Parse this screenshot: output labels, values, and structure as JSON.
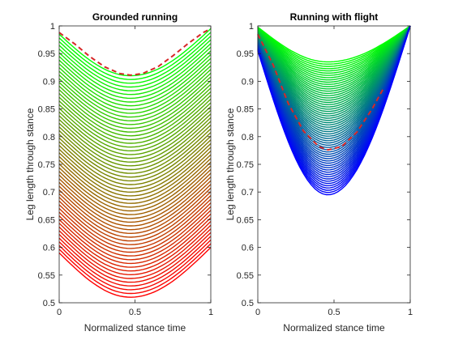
{
  "figure": {
    "background": "#ffffff"
  },
  "chart_data": [
    {
      "type": "line",
      "title": "Grounded running",
      "xlabel": "Normalized stance time",
      "ylabel": "Leg length through stance",
      "xlim": [
        0,
        1
      ],
      "ylim": [
        0.5,
        1.0
      ],
      "xticks": [
        0,
        0.5,
        1
      ],
      "yticks": [
        0.5,
        0.55,
        0.6,
        0.65,
        0.7,
        0.75,
        0.8,
        0.85,
        0.9,
        0.95,
        1
      ],
      "xtick_labels": [
        "0",
        "0.5",
        "1"
      ],
      "ytick_labels": [
        "0.5",
        "0.55",
        "0.6",
        "0.65",
        "0.7",
        "0.75",
        "0.8",
        "0.85",
        "0.9",
        "0.95",
        "1"
      ],
      "grid": false,
      "colors": {
        "family_start": "#00ff00",
        "family_end": "#ff0000",
        "highlight": "#d62728"
      },
      "curve_family": {
        "count": 60,
        "x_end": 1.0,
        "start_y_range": [
          0.985,
          0.59
        ],
        "min_y_range": [
          0.91,
          0.51
        ],
        "min_x": 0.47,
        "end_y_range": [
          0.995,
          0.6
        ],
        "color_from": "#00ff00",
        "color_to": "#ff0000"
      },
      "highlight_curve": {
        "style": "dashed",
        "color": "#d62728",
        "x": [
          0,
          0.1,
          0.2,
          0.3,
          0.4,
          0.47,
          0.55,
          0.65,
          0.75,
          0.85,
          0.95,
          1.0
        ],
        "y": [
          0.988,
          0.968,
          0.945,
          0.926,
          0.914,
          0.911,
          0.914,
          0.926,
          0.946,
          0.968,
          0.988,
          0.995
        ]
      }
    },
    {
      "type": "line",
      "title": "Running with flight",
      "xlabel": "Normalized stance time",
      "ylabel": "Leg length through stance",
      "xlim": [
        0,
        1
      ],
      "ylim": [
        0.5,
        1.0
      ],
      "xticks": [
        0,
        0.5,
        1
      ],
      "yticks": [
        0.5,
        0.55,
        0.6,
        0.65,
        0.7,
        0.75,
        0.8,
        0.85,
        0.9,
        0.95,
        1
      ],
      "xtick_labels": [
        "0",
        "0.5",
        "1"
      ],
      "ytick_labels": [
        "0.5",
        "0.55",
        "0.6",
        "0.65",
        "0.7",
        "0.75",
        "0.8",
        "0.85",
        "0.9",
        "0.95",
        "1"
      ],
      "grid": false,
      "colors": {
        "family_start": "#00ff00",
        "family_end": "#0000ff",
        "highlight": "#d62728"
      },
      "curve_family": {
        "count": 60,
        "x_end": 1.0,
        "start_y_range": [
          0.998,
          0.955
        ],
        "min_y_range": [
          0.935,
          0.695
        ],
        "min_x": 0.46,
        "end_y_range": [
          1.0,
          1.0
        ],
        "color_from": "#00ff00",
        "color_to": "#0000ff"
      },
      "highlight_curve": {
        "style": "dashed",
        "color": "#d62728",
        "x": [
          0,
          0.1,
          0.2,
          0.3,
          0.4,
          0.46,
          0.55,
          0.65,
          0.75,
          0.82
        ],
        "y": [
          0.985,
          0.93,
          0.86,
          0.81,
          0.782,
          0.776,
          0.782,
          0.808,
          0.85,
          0.885
        ]
      }
    }
  ]
}
